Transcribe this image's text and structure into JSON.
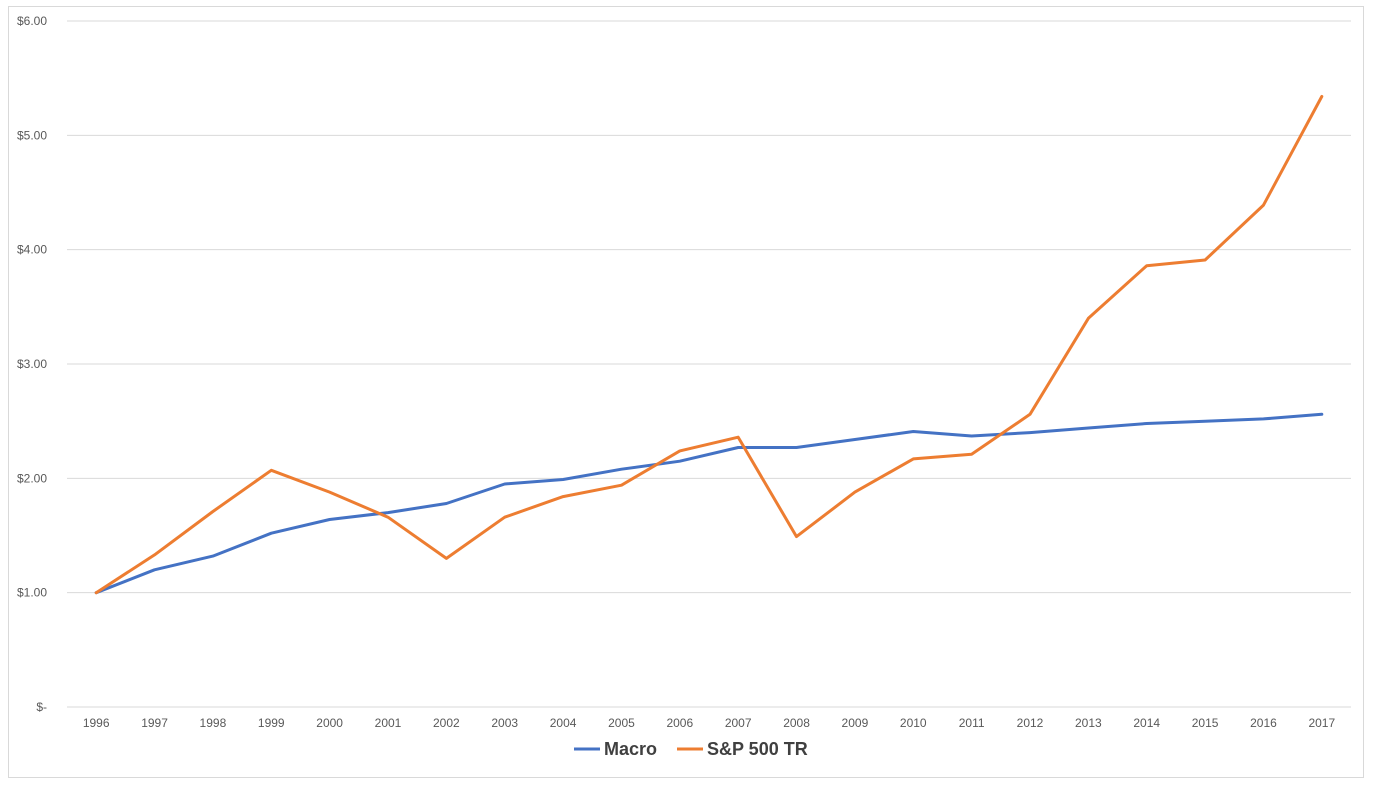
{
  "chart_data": {
    "type": "line",
    "title": "",
    "xlabel": "",
    "ylabel": "",
    "ylim": [
      0,
      6
    ],
    "y_ticks": [
      "$-",
      "$1.00",
      "$2.00",
      "$3.00",
      "$4.00",
      "$5.00",
      "$6.00"
    ],
    "y_tick_values": [
      0,
      1,
      2,
      3,
      4,
      5,
      6
    ],
    "grid": true,
    "legend_position": "bottom",
    "categories": [
      "1996",
      "1997",
      "1998",
      "1999",
      "2000",
      "2001",
      "2002",
      "2003",
      "2004",
      "2005",
      "2006",
      "2007",
      "2008",
      "2009",
      "2010",
      "2011",
      "2012",
      "2013",
      "2014",
      "2015",
      "2016",
      "2017"
    ],
    "series": [
      {
        "name": "Macro",
        "color": "#4472c4",
        "values": [
          1.0,
          1.2,
          1.32,
          1.52,
          1.64,
          1.7,
          1.78,
          1.95,
          1.99,
          2.08,
          2.15,
          2.27,
          2.27,
          2.34,
          2.41,
          2.37,
          2.4,
          2.44,
          2.48,
          2.5,
          2.52,
          2.56
        ]
      },
      {
        "name": "S&P 500 TR",
        "color": "#ed7d31",
        "values": [
          1.0,
          1.33,
          1.71,
          2.07,
          1.88,
          1.66,
          1.3,
          1.66,
          1.84,
          1.94,
          2.24,
          2.36,
          1.49,
          1.88,
          2.17,
          2.21,
          2.56,
          3.4,
          3.86,
          3.91,
          4.39,
          5.34
        ]
      }
    ]
  }
}
